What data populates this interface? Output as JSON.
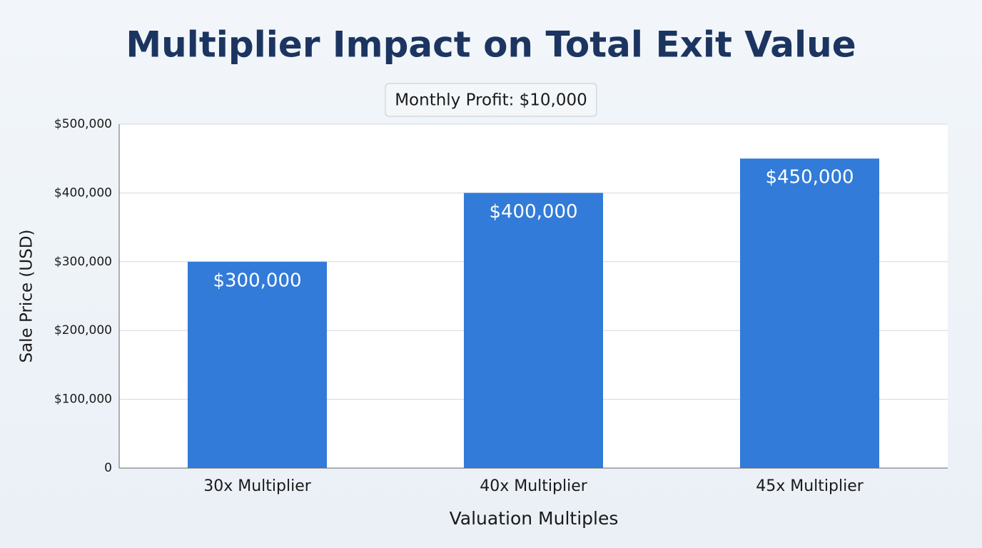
{
  "chart_data": {
    "type": "bar",
    "title": "Multiplier Impact on Total Exit Value",
    "annotation": "Monthly Profit: $10,000",
    "x_label": "Valuation Multiples",
    "y_label": "Sale Price (USD)",
    "categories": [
      "30x Multiplier",
      "40x Multiplier",
      "45x Multiplier"
    ],
    "values": [
      300000,
      400000,
      450000
    ],
    "value_labels": [
      "$300,000",
      "$400,000",
      "$450,000"
    ],
    "color": "#327bd8",
    "ylim": [
      0,
      500000
    ],
    "yticks": [
      0,
      {
        "value": 100000,
        "label": "$100,000"
      },
      {
        "value": 200000,
        "label": "$200,000"
      },
      {
        "value": 300000,
        "label": "$300,000"
      },
      {
        "value": 400000,
        "label": "$400,000"
      },
      {
        "value": 500000,
        "label": "$500,000"
      }
    ],
    "grid": true
  }
}
